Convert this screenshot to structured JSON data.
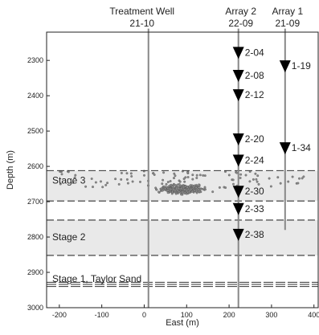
{
  "chart_data": {
    "type": "scatter",
    "xlabel": "East (m)",
    "ylabel": "Depth (m)",
    "xlim": [
      -230,
      410
    ],
    "ylim": [
      3000,
      2220
    ],
    "x_ticks": [
      -200,
      -100,
      0,
      100,
      200,
      300,
      400
    ],
    "y_ticks": [
      2300,
      2400,
      2500,
      2600,
      2700,
      2800,
      2900,
      3000
    ],
    "grid": false,
    "wells": [
      {
        "name": "Treatment Well",
        "id": "21-10",
        "x": 10,
        "top": 2210,
        "bottom": 3000
      },
      {
        "name": "Array 2",
        "id": "22-09",
        "x": 222,
        "top": 2210,
        "bottom": 3000
      },
      {
        "name": "Array 1",
        "id": "21-09",
        "x": 332,
        "top": 2210,
        "bottom": 2780
      }
    ],
    "receivers": [
      {
        "label": "2-04",
        "x": 222,
        "depth": 2280
      },
      {
        "label": "2-08",
        "x": 222,
        "depth": 2345
      },
      {
        "label": "2-12",
        "x": 222,
        "depth": 2400
      },
      {
        "label": "2-20",
        "x": 222,
        "depth": 2525
      },
      {
        "label": "2-24",
        "x": 222,
        "depth": 2585
      },
      {
        "label": "2-30",
        "x": 222,
        "depth": 2673
      },
      {
        "label": "2-33",
        "x": 222,
        "depth": 2722
      },
      {
        "label": "2-38",
        "x": 222,
        "depth": 2795
      },
      {
        "label": "1-19",
        "x": 332,
        "depth": 2318
      },
      {
        "label": "1-34",
        "x": 332,
        "depth": 2550
      }
    ],
    "stages": [
      {
        "label": "Stage 3",
        "top": 2612,
        "bottom": 2698,
        "shaded": true
      },
      {
        "label": "Stage 2",
        "top": 2752,
        "bottom": 2852,
        "shaded": true
      },
      {
        "label": "Stage 1, Taylor Sand",
        "top": 2928,
        "bottom": 2940,
        "shaded": false
      }
    ],
    "stage_boundaries": [
      2612,
      2698,
      2752,
      2852
    ],
    "taylor_sand_lines": [
      2928,
      2934,
      2940
    ],
    "events_cloud": {
      "center_x": 90,
      "center_depth": 2665,
      "x_min": -200,
      "x_max": 380,
      "depth_min": 2612,
      "depth_max": 2760,
      "count": 520
    }
  }
}
